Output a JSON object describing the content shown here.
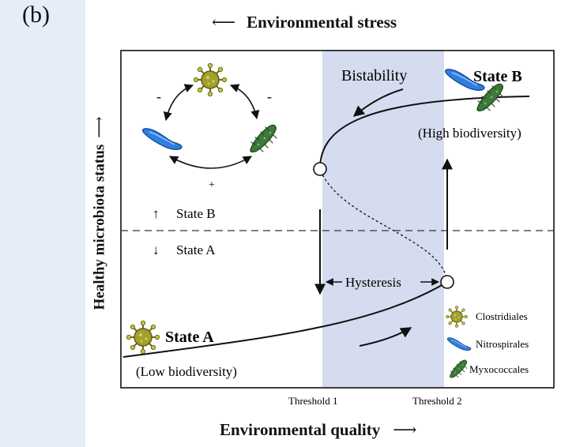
{
  "panel_label": "(b)",
  "axes": {
    "top_label": "Environmental stress",
    "top_arrow": "⟵",
    "bottom_label": "Environmental quality",
    "bottom_arrow": "⟶",
    "y_label": "Healthy microbiota status",
    "y_arrow": "⟶"
  },
  "annotations": {
    "bistability": "Bistability",
    "hysteresis": "Hysteresis",
    "state_b_up": "State B",
    "state_a_down": "State A",
    "up_arrow": "↑",
    "down_arrow": "↓",
    "minus_left": "-",
    "minus_right": "-",
    "plus": "+"
  },
  "states": {
    "b_title": "State B",
    "b_sub": "(High biodiversity)",
    "a_title": "State A",
    "a_sub": "(Low biodiversity)"
  },
  "thresholds": {
    "t1": "Threshold 1",
    "t2": "Threshold 2"
  },
  "legend": {
    "items": [
      {
        "label": "Clostridiales",
        "icon": "clostridiales-icon"
      },
      {
        "label": "Nitrospirales",
        "icon": "nitrospirales-icon"
      },
      {
        "label": "Myxococcales",
        "icon": "myxococcales-icon"
      }
    ]
  },
  "colors": {
    "bistable_band": "#d5dcef",
    "left_strip": "#e6ecf8",
    "clostridiales": "#9b9a2c",
    "nitrospirales": "#2f7fe0",
    "myxococcales": "#3d7a3a"
  }
}
